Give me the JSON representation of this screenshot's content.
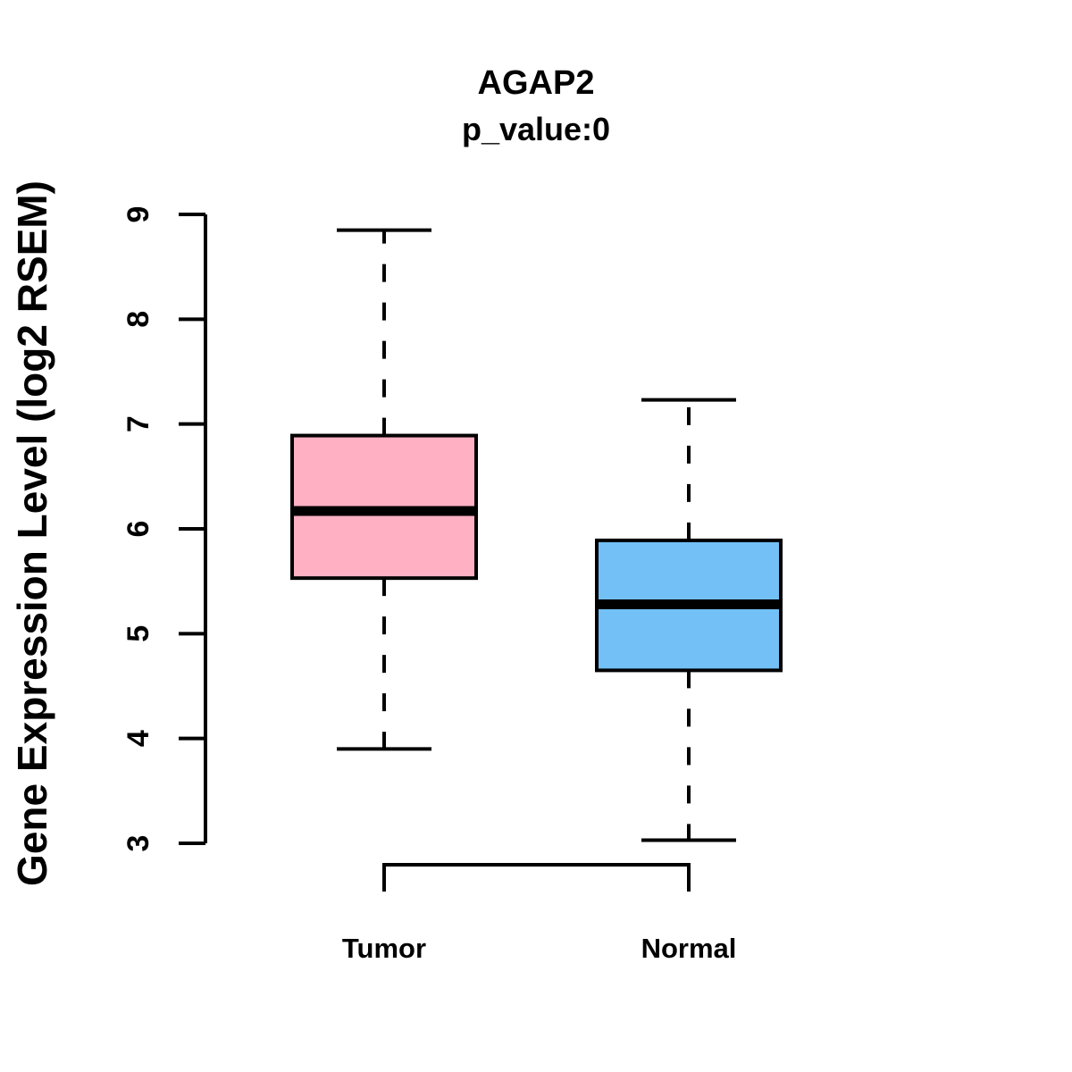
{
  "chart_data": {
    "type": "boxplot",
    "title": "AGAP2",
    "subtitle": "p_value:0",
    "ylabel": "Gene Expression Level (log2 RSEM)",
    "xlabel": "",
    "categories": [
      "Tumor",
      "Normal"
    ],
    "ylim": [
      3,
      9
    ],
    "yticks": [
      3,
      4,
      5,
      6,
      7,
      8,
      9
    ],
    "grid": false,
    "legend_position": "none",
    "series": [
      {
        "name": "Tumor",
        "whisker_low": 3.9,
        "q1": 5.53,
        "median": 6.17,
        "q3": 6.89,
        "whisker_high": 8.85,
        "fill_color": "#FFB0C3"
      },
      {
        "name": "Normal",
        "whisker_low": 3.03,
        "q1": 4.65,
        "median": 5.28,
        "q3": 5.89,
        "whisker_high": 7.23,
        "fill_color": "#73C0F7"
      }
    ],
    "comparison_bracket": {
      "between": [
        "Tumor",
        "Normal"
      ],
      "label": ""
    },
    "stroke_color": "#000000",
    "background_color": "#FFFFFF"
  }
}
